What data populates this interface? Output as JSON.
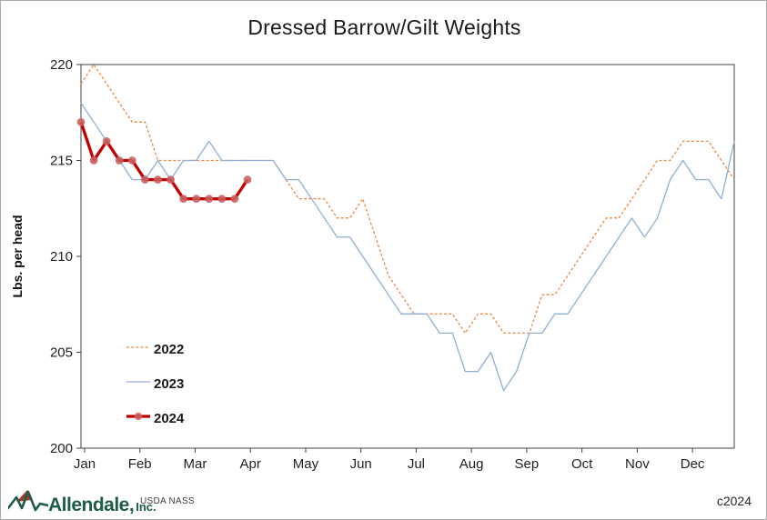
{
  "chart_data": {
    "type": "line",
    "title": "Dressed Barrow/Gilt Weights",
    "ylabel": "Lbs. per head",
    "ylim": [
      200,
      220
    ],
    "yticks": [
      220,
      215,
      210,
      205,
      200
    ],
    "months": [
      "Jan",
      "Feb",
      "Mar",
      "Apr",
      "May",
      "Jun",
      "Jul",
      "Aug",
      "Sep",
      "Oct",
      "Nov",
      "Dec"
    ],
    "x_unit": "week",
    "weeks": 52,
    "grid": false,
    "legend_position": "inside-left-middle",
    "axis_color": "#404040",
    "label_color": "#1F1F1F",
    "series": [
      {
        "name": "2022",
        "color": "#EE8844",
        "width": 1.3,
        "dash": "3 2.2",
        "markers": false,
        "values": [
          219,
          220,
          219,
          218,
          217,
          217,
          215,
          215,
          215,
          215,
          215,
          215,
          215,
          215,
          215,
          215,
          214,
          213,
          213,
          213,
          212,
          212,
          213,
          211,
          209,
          208,
          207,
          207,
          207,
          207,
          206,
          207,
          207,
          206,
          206,
          206,
          208,
          208,
          209,
          210,
          211,
          212,
          212,
          213,
          214,
          215,
          215,
          216,
          216,
          216,
          215,
          214
        ]
      },
      {
        "name": "2023",
        "color": "#8FAFD4",
        "width": 1.3,
        "dash": "",
        "markers": false,
        "values": [
          218,
          217,
          216,
          215,
          214,
          214,
          215,
          214,
          215,
          215,
          216,
          215,
          215,
          215,
          215,
          215,
          214,
          214,
          213,
          212,
          211,
          211,
          210,
          209,
          208,
          207,
          207,
          207,
          206,
          206,
          204,
          204,
          205,
          203,
          204,
          206,
          206,
          207,
          207,
          208,
          209,
          210,
          211,
          212,
          211,
          212,
          214,
          215,
          214,
          214,
          213,
          216
        ]
      },
      {
        "name": "2024",
        "color": "#C00000",
        "width": 3.3,
        "dash": "",
        "markers": true,
        "marker_color": "#C86060",
        "values": [
          217,
          215,
          216,
          215,
          215,
          214,
          214,
          214,
          213,
          213,
          213,
          213,
          213,
          214
        ]
      }
    ]
  },
  "footer": {
    "logo_main": "Allendale,",
    "logo_sub": "Inc.",
    "source": "USDA NASS",
    "copyright": "c2024"
  }
}
